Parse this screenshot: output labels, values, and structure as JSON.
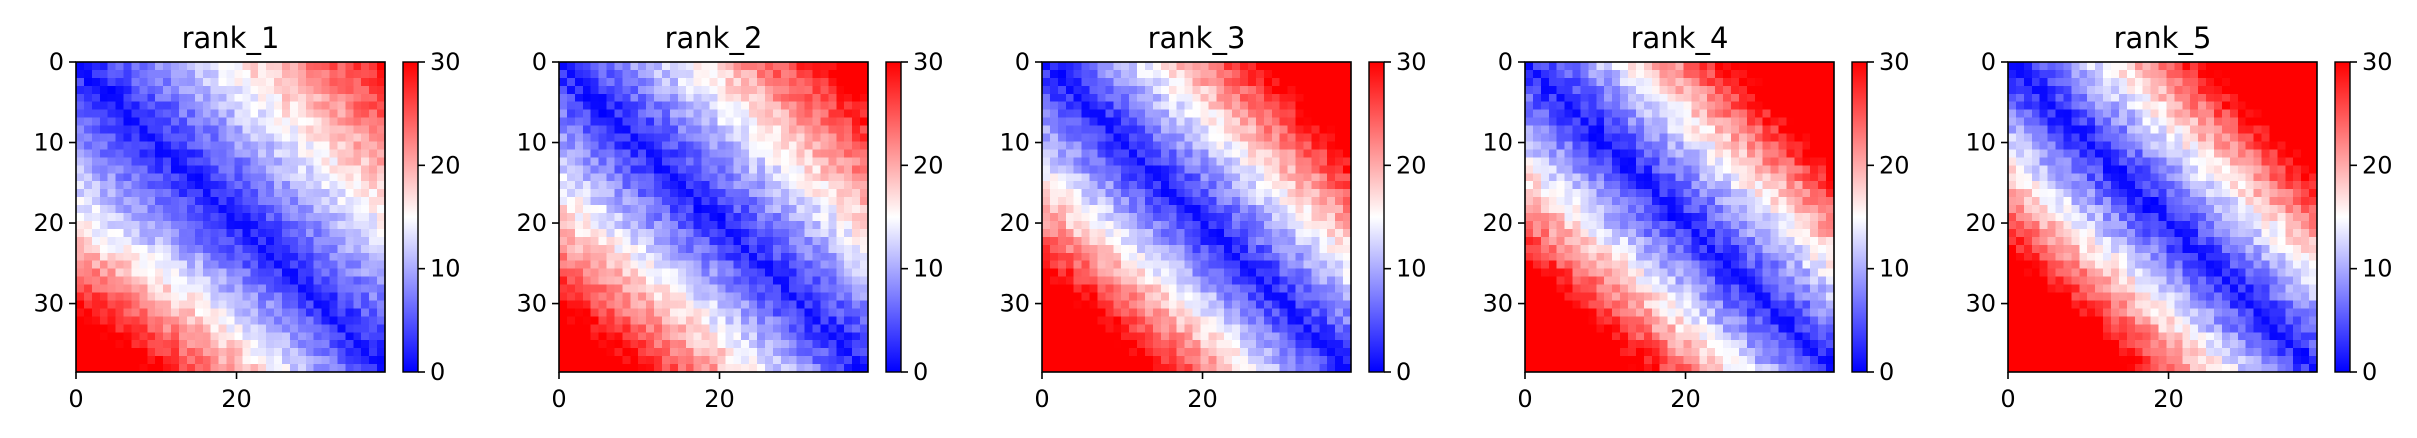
{
  "figure": {
    "background": "#ffffff"
  },
  "chart_data": [
    {
      "type": "heatmap",
      "title": "rank_1",
      "rows": 39,
      "cols": 39,
      "colormap": "bwr",
      "xticks": [
        0,
        20
      ],
      "yticks": [
        0,
        10,
        20,
        30
      ],
      "xlim": [
        0,
        38.5
      ],
      "ylim": [
        38.5,
        0
      ],
      "colorbar": {
        "min": 0,
        "max": 30,
        "ticks": [
          0,
          10,
          20,
          30
        ]
      },
      "model": {
        "slope": 0.72,
        "curve": 0.0,
        "cornerBoost": 12,
        "cornerCol": 12,
        "lowCornerRow": 39,
        "noise": 2.2,
        "seed": 11
      }
    },
    {
      "type": "heatmap",
      "title": "rank_2",
      "rows": 39,
      "cols": 39,
      "colormap": "bwr",
      "xticks": [
        0,
        20
      ],
      "yticks": [
        0,
        10,
        20,
        30
      ],
      "xlim": [
        0,
        38.5
      ],
      "ylim": [
        38.5,
        0
      ],
      "colorbar": {
        "min": 0,
        "max": 30,
        "ticks": [
          0,
          10,
          20,
          30
        ]
      },
      "model": {
        "slope": 0.85,
        "curve": 0.0,
        "cornerBoost": 6,
        "cornerCol": 12,
        "lowCornerRow": 39,
        "noise": 2.4,
        "seed": 23
      }
    },
    {
      "type": "heatmap",
      "title": "rank_3",
      "rows": 39,
      "cols": 39,
      "colormap": "bwr",
      "xticks": [
        0,
        20
      ],
      "yticks": [
        0,
        10,
        20,
        30
      ],
      "xlim": [
        0,
        38.5
      ],
      "ylim": [
        38.5,
        0
      ],
      "colorbar": {
        "min": 0,
        "max": 30,
        "ticks": [
          0,
          10,
          20,
          30
        ]
      },
      "model": {
        "slope": 0.95,
        "curve": 0.004,
        "cornerBoost": 6,
        "cornerCol": 12,
        "lowCornerRow": 39,
        "noise": 2.4,
        "seed": 37
      }
    },
    {
      "type": "heatmap",
      "title": "rank_4",
      "rows": 39,
      "cols": 39,
      "colormap": "bwr",
      "xticks": [
        0,
        20
      ],
      "yticks": [
        0,
        10,
        20,
        30
      ],
      "xlim": [
        0,
        38.5
      ],
      "ylim": [
        38.5,
        0
      ],
      "colorbar": {
        "min": 0,
        "max": 30,
        "ticks": [
          0,
          10,
          20,
          30
        ]
      },
      "model": {
        "slope": 1.0,
        "curve": 0.005,
        "cornerBoost": 4,
        "cornerCol": 12,
        "lowCornerRow": 39,
        "noise": 2.6,
        "seed": 41
      }
    },
    {
      "type": "heatmap",
      "title": "rank_5",
      "rows": 39,
      "cols": 39,
      "colormap": "bwr",
      "xticks": [
        0,
        20
      ],
      "yticks": [
        0,
        10,
        20,
        30
      ],
      "xlim": [
        0,
        38.5
      ],
      "ylim": [
        38.5,
        0
      ],
      "colorbar": {
        "min": 0,
        "max": 30,
        "ticks": [
          0,
          10,
          20,
          30
        ]
      },
      "model": {
        "slope": 1.05,
        "curve": 0.006,
        "cornerBoost": 4,
        "cornerCol": 12,
        "lowCornerRow": 39,
        "noise": 2.6,
        "seed": 53
      }
    }
  ]
}
